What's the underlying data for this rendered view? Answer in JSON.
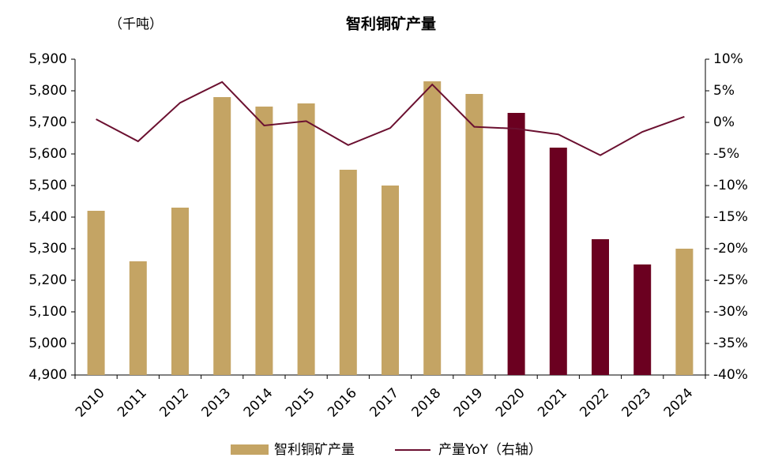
{
  "chart_data": {
    "type": "bar-line",
    "title": "智利铜矿产量",
    "y_unit": "（千吨）",
    "categories": [
      "2010",
      "2011",
      "2012",
      "2013",
      "2014",
      "2015",
      "2016",
      "2017",
      "2018",
      "2019",
      "2020",
      "2021",
      "2022",
      "2023",
      "2024"
    ],
    "series": [
      {
        "name": "智利铜矿产量",
        "type": "bar",
        "color": "#c4a464",
        "bar_colors": [
          "#c4a464",
          "#c4a464",
          "#c4a464",
          "#c4a464",
          "#c4a464",
          "#c4a464",
          "#c4a464",
          "#c4a464",
          "#c4a464",
          "#c4a464",
          "#6b0020",
          "#6b0020",
          "#6b0020",
          "#6b0020",
          "#c4a464"
        ],
        "values": [
          5420,
          5260,
          5430,
          5780,
          5750,
          5760,
          5550,
          5500,
          5830,
          5790,
          5730,
          5620,
          5330,
          5250,
          5300
        ]
      },
      {
        "name": "产量YoY（右轴）",
        "type": "line",
        "axis": "y2",
        "color": "#6b1030",
        "values": [
          0.5,
          -3.0,
          3.1,
          6.4,
          -0.5,
          0.2,
          -3.6,
          -0.9,
          6.0,
          -0.7,
          -1.0,
          -1.9,
          -5.2,
          -1.5,
          0.9
        ]
      }
    ],
    "ylim": [
      4900,
      5900
    ],
    "yticks": [
      {
        "value": 4900,
        "label": "4,900"
      },
      {
        "value": 5000,
        "label": "5,000"
      },
      {
        "value": 5100,
        "label": "5,100"
      },
      {
        "value": 5200,
        "label": "5,200"
      },
      {
        "value": 5300,
        "label": "5,300"
      },
      {
        "value": 5400,
        "label": "5,400"
      },
      {
        "value": 5500,
        "label": "5,500"
      },
      {
        "value": 5600,
        "label": "5,600"
      },
      {
        "value": 5700,
        "label": "5,700"
      },
      {
        "value": 5800,
        "label": "5,800"
      },
      {
        "value": 5900,
        "label": "5,900"
      }
    ],
    "y2lim": [
      -40,
      10
    ],
    "y2ticks": [
      {
        "value": -40,
        "label": "-40%"
      },
      {
        "value": -35,
        "label": "-35%"
      },
      {
        "value": -30,
        "label": "-30%"
      },
      {
        "value": -25,
        "label": "-25%"
      },
      {
        "value": -20,
        "label": "-20%"
      },
      {
        "value": -15,
        "label": "-15%"
      },
      {
        "value": -10,
        "label": "-10%"
      },
      {
        "value": -5,
        "label": "-5%"
      },
      {
        "value": 0,
        "label": "0%"
      },
      {
        "value": 5,
        "label": "5%"
      },
      {
        "value": 10,
        "label": "10%"
      }
    ],
    "grid": false
  }
}
